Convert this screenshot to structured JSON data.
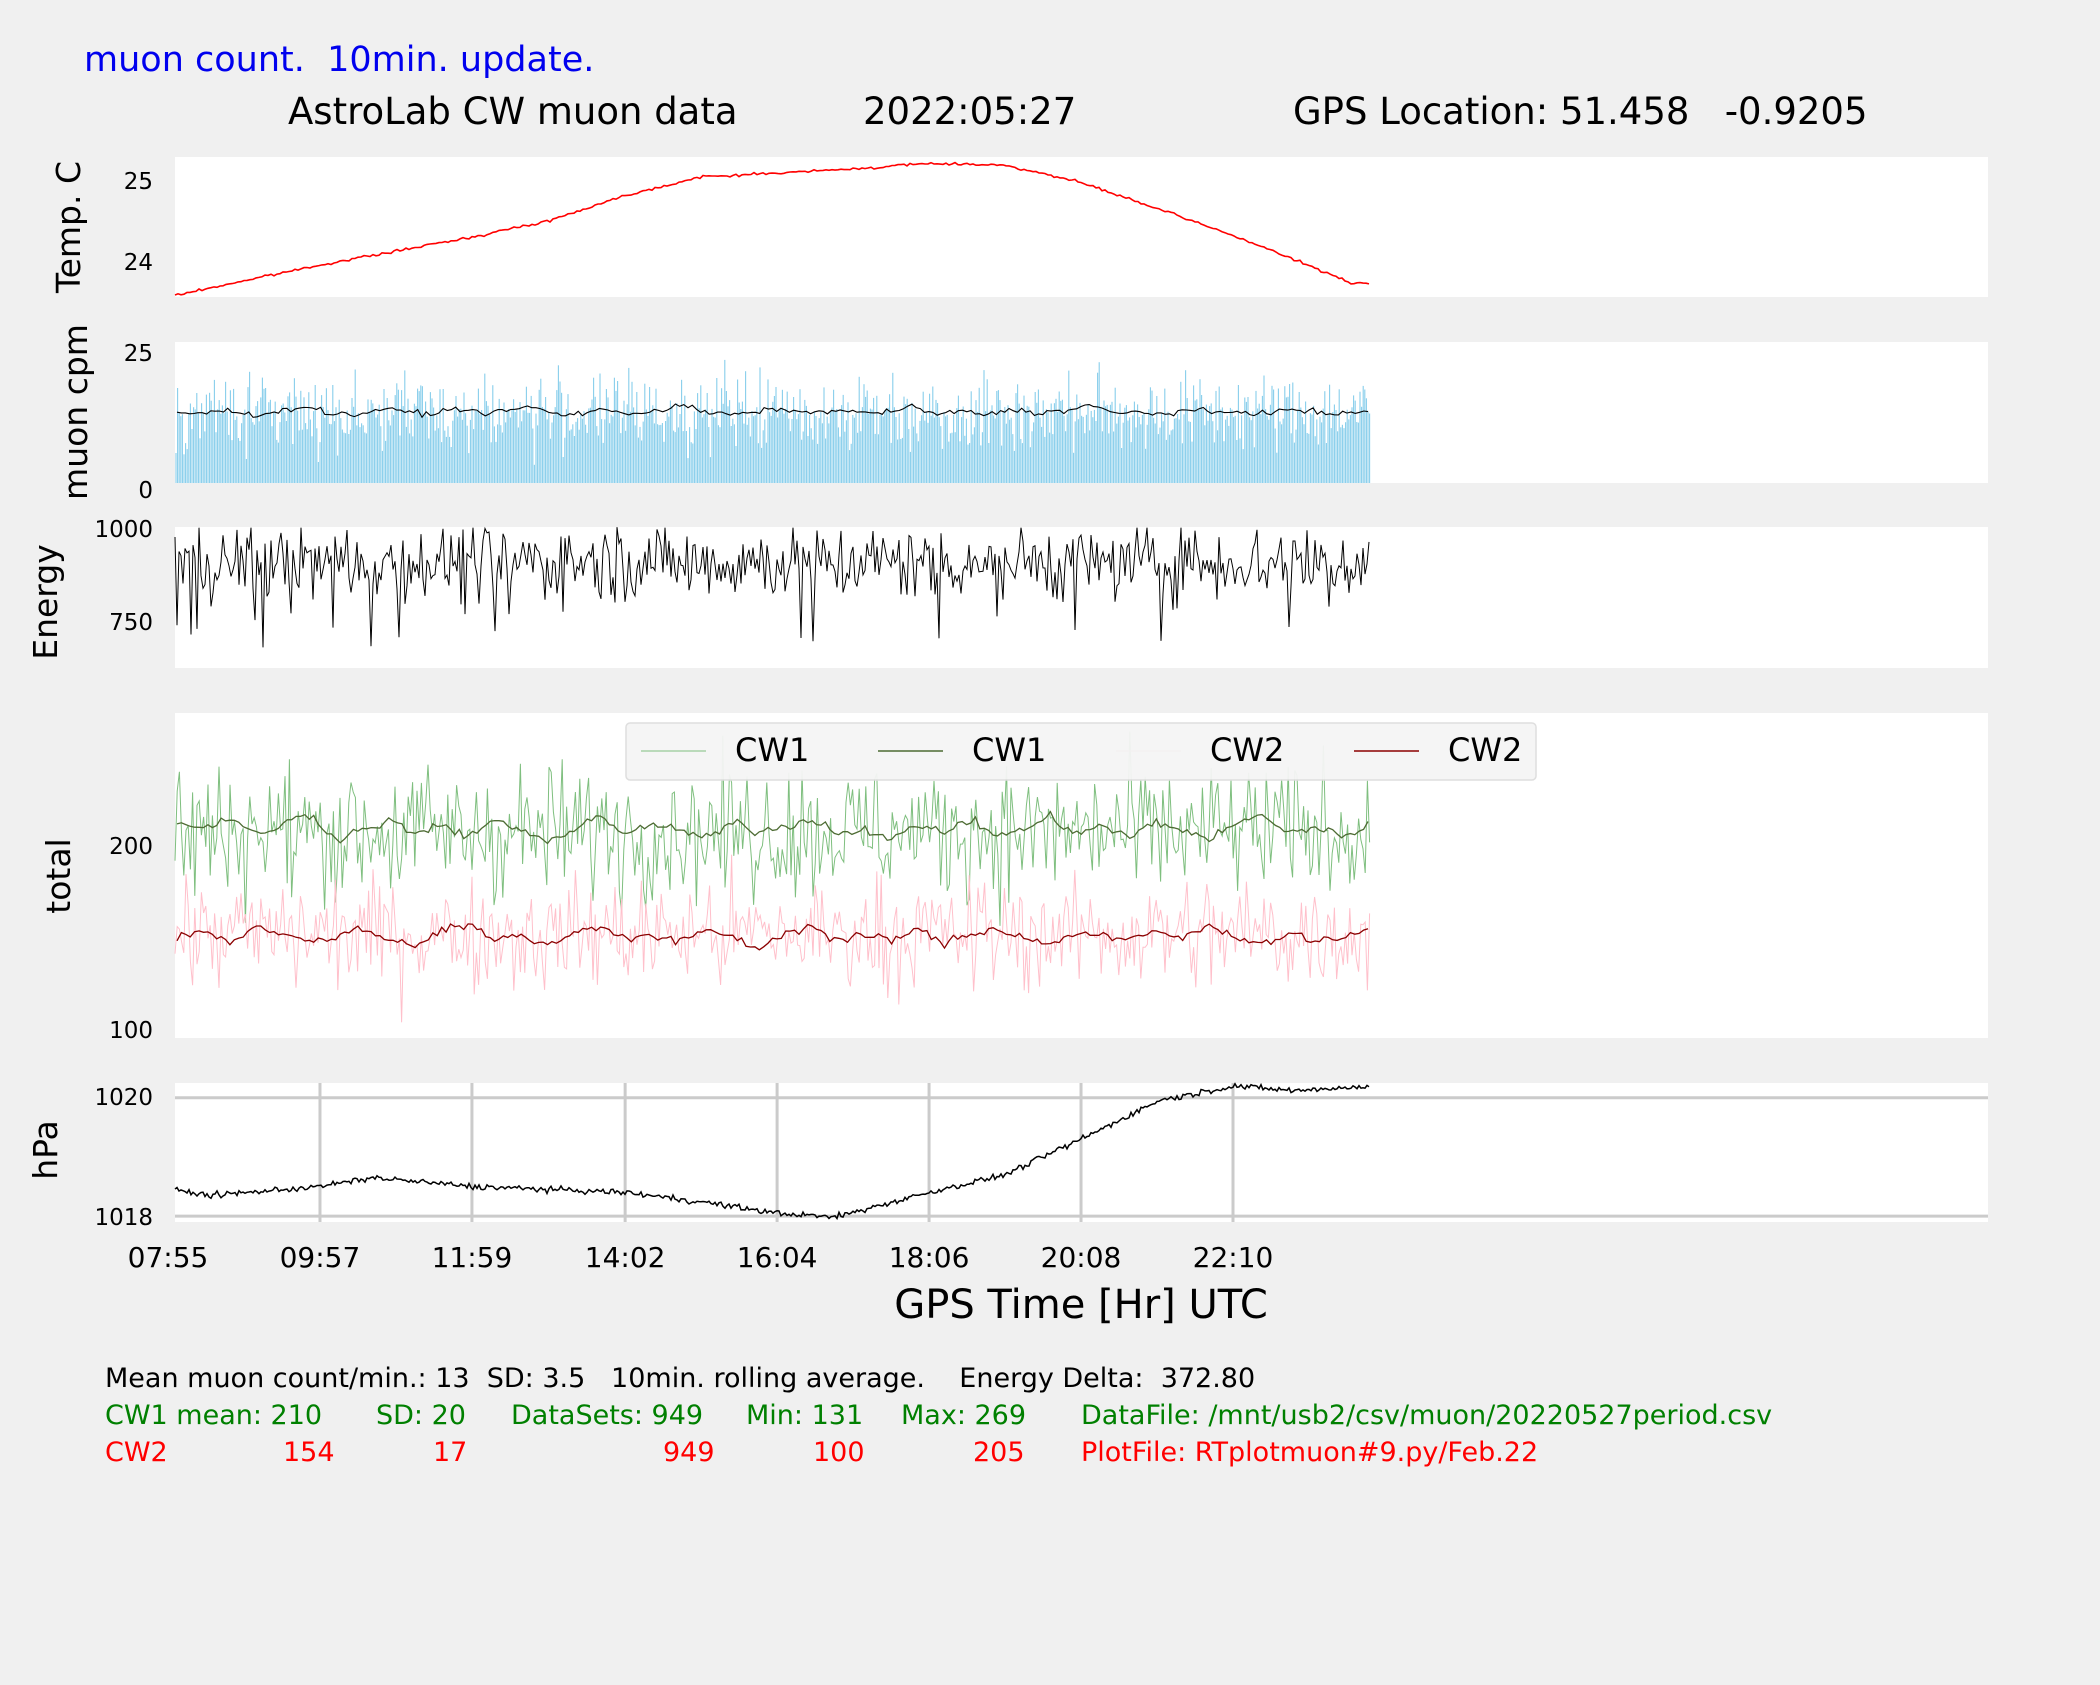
{
  "header": {
    "subtitle": "muon count.  10min. update.",
    "title": "AstroLab CW muon data",
    "date": "2022:05:27",
    "gps": "GPS Location: 51.458   -0.9205"
  },
  "colors": {
    "background": "#f0f0f0",
    "panel": "#ffffff",
    "temp_line": "#ff0000",
    "muon_bars": "#87ceeb",
    "cw1_raw": "#7fbf7f",
    "cw1_avg": "#4d6b33",
    "cw2_raw": "#ffc0cb",
    "cw2_avg": "#8b0000",
    "subtitle": "#0000ee",
    "stats_cw1": "#008000",
    "stats_cw2": "#ff0000"
  },
  "chart_data": [
    {
      "type": "line",
      "ylabel": "Temp. C",
      "yticks": [
        "24",
        "25"
      ],
      "ylim": [
        23.55,
        25.3
      ],
      "series": [
        {
          "x": [
            "07:55",
            "08:55",
            "09:57",
            "10:57",
            "11:59",
            "13:00",
            "14:02",
            "15:03",
            "16:04",
            "17:05",
            "18:06",
            "19:07",
            "20:08",
            "21:10",
            "22:10",
            "23:10",
            "23:45"
          ],
          "values": [
            23.55,
            23.75,
            23.95,
            24.12,
            24.3,
            24.5,
            24.82,
            25.05,
            25.1,
            25.15,
            25.22,
            25.2,
            24.98,
            24.65,
            24.32,
            23.95,
            23.72
          ]
        }
      ]
    },
    {
      "type": "bar",
      "ylabel": "muon cpm",
      "yticks": [
        "0",
        "25"
      ],
      "ylim": [
        0,
        26
      ],
      "mean": 13,
      "sd": 3.5,
      "rolling_avg": [
        13,
        12.8,
        13.4,
        12.6,
        13.1,
        14.2,
        12.9,
        12.5,
        13.6,
        13.2,
        12.7,
        13.8,
        12.9,
        13.3,
        14.1,
        12.6,
        12.9,
        13.5,
        12.8,
        13.4,
        14.3,
        12.9,
        12.6,
        13.2,
        13.7,
        12.8,
        13.5,
        12.9,
        13.1,
        14.0,
        12.7,
        13.2,
        12.6,
        13.6,
        12.9,
        13.3,
        14.4,
        12.8,
        13.1,
        12.7,
        13.5,
        12.9,
        13.2,
        12.8,
        13.6,
        13.0,
        12.7,
        13.3
      ]
    },
    {
      "type": "line",
      "ylabel": "Energy",
      "yticks": [
        "750",
        "1000"
      ],
      "ylim": [
        620,
        1000
      ],
      "delta": "372.80",
      "center": 905,
      "spread": 50
    },
    {
      "type": "line",
      "ylabel": "total",
      "yticks": [
        "100",
        "200"
      ],
      "ylim": [
        97,
        275
      ],
      "legend": [
        "CW1",
        "CW1",
        "CW2",
        "CW2"
      ],
      "legend_position": "top-center",
      "cw1": {
        "mean": 210,
        "sd": 20,
        "min": 131,
        "max": 269
      },
      "cw2": {
        "mean": 154,
        "sd": 17,
        "min": 100,
        "max": 205
      },
      "cw1_avg": [
        215,
        212,
        218,
        208,
        214,
        220,
        206,
        211,
        216,
        209,
        213,
        207,
        217,
        210,
        204,
        212,
        219,
        208,
        214,
        211,
        206,
        215,
        210,
        213,
        217,
        209,
        212,
        205,
        214,
        210,
        216,
        208,
        211,
        218,
        209,
        213,
        207,
        215,
        211,
        206,
        214,
        219,
        210,
        212,
        208,
        213
      ],
      "cw2_avg": [
        152,
        156,
        150,
        158,
        154,
        149,
        153,
        157,
        151,
        148,
        156,
        160,
        150,
        154,
        147,
        155,
        159,
        151,
        153,
        149,
        157,
        152,
        146,
        155,
        158,
        150,
        153,
        151,
        156,
        149,
        154,
        157,
        152,
        148,
        155,
        153,
        150,
        156,
        151,
        159,
        153,
        148,
        155,
        150,
        152,
        157
      ]
    },
    {
      "type": "line",
      "ylabel": "hPa",
      "yticks": [
        "1018",
        "1020"
      ],
      "ylim": [
        1017.9,
        1020.25
      ],
      "xlabel": "GPS Time  [Hr] UTC",
      "xticks": [
        "07:55",
        "09:57",
        "11:59",
        "14:02",
        "16:04",
        "18:06",
        "20:08",
        "22:10"
      ],
      "grid": true,
      "series": [
        {
          "x": [
            "07:55",
            "08:30",
            "09:57",
            "10:40",
            "11:59",
            "13:00",
            "14:02",
            "15:00",
            "16:04",
            "16:50",
            "18:06",
            "19:07",
            "20:08",
            "21:10",
            "22:10",
            "23:00",
            "23:45"
          ],
          "values": [
            1018.45,
            1018.35,
            1018.5,
            1018.65,
            1018.5,
            1018.45,
            1018.4,
            1018.25,
            1018.05,
            1017.98,
            1018.4,
            1018.7,
            1019.3,
            1019.95,
            1020.2,
            1020.12,
            1020.18
          ]
        }
      ]
    }
  ],
  "stats": {
    "line1": "Mean muon count/min.: 13  SD: 3.5   10min. rolling average.    Energy Delta:  372.80",
    "cw1": {
      "mean": "CW1 mean: 210",
      "sd": "SD: 20",
      "datasets": "DataSets: 949",
      "min": "Min: 131",
      "max": "Max: 269",
      "file": "DataFile: /mnt/usb2/csv/muon/20220527period.csv"
    },
    "cw2": {
      "label": "CW2",
      "mean": "154",
      "sd": "17",
      "datasets": "949",
      "min": "100",
      "max": "205",
      "file": "PlotFile: RTplotmuon#9.py/Feb.22"
    }
  }
}
